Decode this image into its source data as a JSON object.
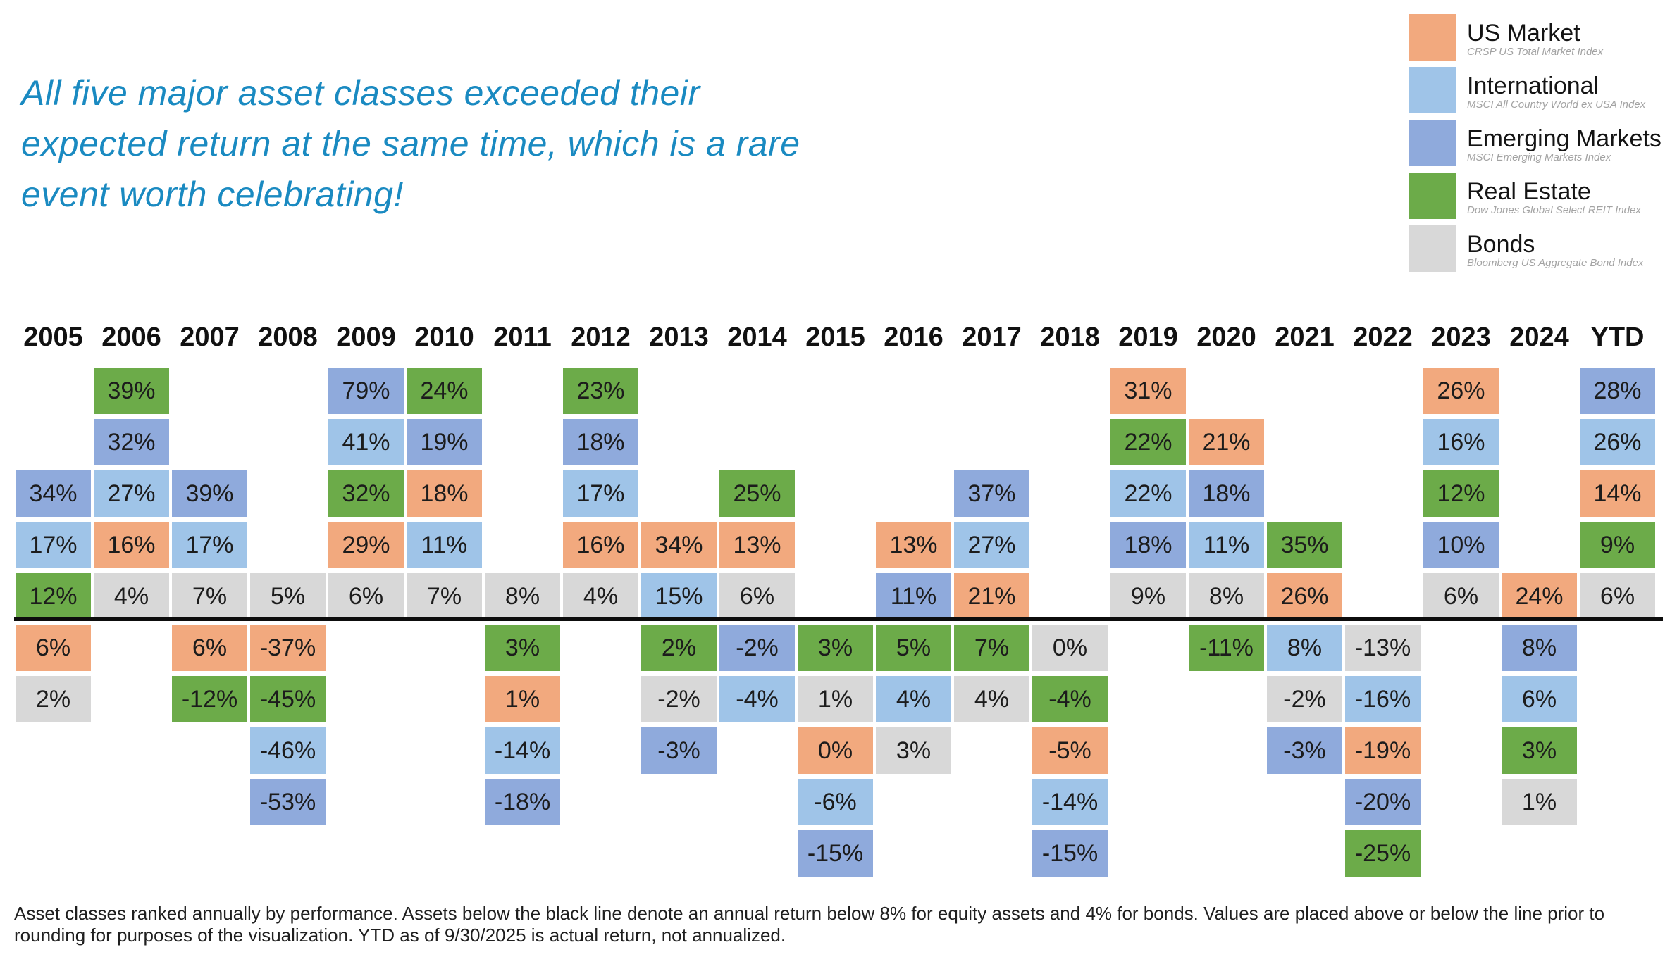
{
  "title": "All five major asset classes exceeded their expected return at the same time, which is a rare event worth celebrating!",
  "footnote": "Asset classes ranked annually by performance. Assets below the black line denote an annual return below 8% for equity assets and 4% for bonds. Values are placed above or below the line prior to rounding for purposes of the visualization. YTD as of 9/30/2025 is actual return, not annualized.",
  "colors": {
    "us-market": "#f2a97e",
    "international": "#9fc4e8",
    "emerging-markets": "#8faadc",
    "real-estate": "#6cab49",
    "bonds": "#d8d8d8",
    "title": "#1a8ac1",
    "divider": "#0d0d0d"
  },
  "legend": [
    {
      "id": "us-market",
      "label": "US Market",
      "index": "CRSP US Total Market Index"
    },
    {
      "id": "international",
      "label": "International",
      "index": "MSCI All Country World ex USA Index"
    },
    {
      "id": "emerging-markets",
      "label": "Emerging Markets",
      "index": "MSCI Emerging Markets Index"
    },
    {
      "id": "real-estate",
      "label": "Real Estate",
      "index": "Dow Jones Global Select REIT Index"
    },
    {
      "id": "bonds",
      "label": "Bonds",
      "index": "Bloomberg US Aggregate Bond Index"
    }
  ],
  "chart_data": {
    "type": "table",
    "description": "Asset classes ranked annually by performance; rows 1-5 sit above the black expected-return line, rows 6-10 below it",
    "rows_above_line": 5,
    "divider_rule": "below line = annual return below 8% for equity assets and 4% for bonds",
    "columns": [
      {
        "year": "2005",
        "cells": [
          {
            "row": 3,
            "asset": "emerging-markets",
            "value": "34%"
          },
          {
            "row": 4,
            "asset": "international",
            "value": "17%"
          },
          {
            "row": 5,
            "asset": "real-estate",
            "value": "12%"
          },
          {
            "row": 6,
            "asset": "us-market",
            "value": "6%"
          },
          {
            "row": 7,
            "asset": "bonds",
            "value": "2%"
          }
        ]
      },
      {
        "year": "2006",
        "cells": [
          {
            "row": 1,
            "asset": "real-estate",
            "value": "39%"
          },
          {
            "row": 2,
            "asset": "emerging-markets",
            "value": "32%"
          },
          {
            "row": 3,
            "asset": "international",
            "value": "27%"
          },
          {
            "row": 4,
            "asset": "us-market",
            "value": "16%"
          },
          {
            "row": 5,
            "asset": "bonds",
            "value": "4%"
          }
        ]
      },
      {
        "year": "2007",
        "cells": [
          {
            "row": 3,
            "asset": "emerging-markets",
            "value": "39%"
          },
          {
            "row": 4,
            "asset": "international",
            "value": "17%"
          },
          {
            "row": 5,
            "asset": "bonds",
            "value": "7%"
          },
          {
            "row": 6,
            "asset": "us-market",
            "value": "6%"
          },
          {
            "row": 7,
            "asset": "real-estate",
            "value": "-12%"
          }
        ]
      },
      {
        "year": "2008",
        "cells": [
          {
            "row": 5,
            "asset": "bonds",
            "value": "5%"
          },
          {
            "row": 6,
            "asset": "us-market",
            "value": "-37%"
          },
          {
            "row": 7,
            "asset": "real-estate",
            "value": "-45%"
          },
          {
            "row": 8,
            "asset": "international",
            "value": "-46%"
          },
          {
            "row": 9,
            "asset": "emerging-markets",
            "value": "-53%"
          }
        ]
      },
      {
        "year": "2009",
        "cells": [
          {
            "row": 1,
            "asset": "emerging-markets",
            "value": "79%"
          },
          {
            "row": 2,
            "asset": "international",
            "value": "41%"
          },
          {
            "row": 3,
            "asset": "real-estate",
            "value": "32%"
          },
          {
            "row": 4,
            "asset": "us-market",
            "value": "29%"
          },
          {
            "row": 5,
            "asset": "bonds",
            "value": "6%"
          }
        ]
      },
      {
        "year": "2010",
        "cells": [
          {
            "row": 1,
            "asset": "real-estate",
            "value": "24%"
          },
          {
            "row": 2,
            "asset": "emerging-markets",
            "value": "19%"
          },
          {
            "row": 3,
            "asset": "us-market",
            "value": "18%"
          },
          {
            "row": 4,
            "asset": "international",
            "value": "11%"
          },
          {
            "row": 5,
            "asset": "bonds",
            "value": "7%"
          }
        ]
      },
      {
        "year": "2011",
        "cells": [
          {
            "row": 5,
            "asset": "bonds",
            "value": "8%"
          },
          {
            "row": 6,
            "asset": "real-estate",
            "value": "3%"
          },
          {
            "row": 7,
            "asset": "us-market",
            "value": "1%"
          },
          {
            "row": 8,
            "asset": "international",
            "value": "-14%"
          },
          {
            "row": 9,
            "asset": "emerging-markets",
            "value": "-18%"
          }
        ]
      },
      {
        "year": "2012",
        "cells": [
          {
            "row": 1,
            "asset": "real-estate",
            "value": "23%"
          },
          {
            "row": 2,
            "asset": "emerging-markets",
            "value": "18%"
          },
          {
            "row": 3,
            "asset": "international",
            "value": "17%"
          },
          {
            "row": 4,
            "asset": "us-market",
            "value": "16%"
          },
          {
            "row": 5,
            "asset": "bonds",
            "value": "4%"
          }
        ]
      },
      {
        "year": "2013",
        "cells": [
          {
            "row": 4,
            "asset": "us-market",
            "value": "34%"
          },
          {
            "row": 5,
            "asset": "international",
            "value": "15%"
          },
          {
            "row": 6,
            "asset": "real-estate",
            "value": "2%"
          },
          {
            "row": 7,
            "asset": "bonds",
            "value": "-2%"
          },
          {
            "row": 8,
            "asset": "emerging-markets",
            "value": "-3%"
          }
        ]
      },
      {
        "year": "2014",
        "cells": [
          {
            "row": 3,
            "asset": "real-estate",
            "value": "25%"
          },
          {
            "row": 4,
            "asset": "us-market",
            "value": "13%"
          },
          {
            "row": 5,
            "asset": "bonds",
            "value": "6%"
          },
          {
            "row": 6,
            "asset": "emerging-markets",
            "value": "-2%"
          },
          {
            "row": 7,
            "asset": "international",
            "value": "-4%"
          }
        ]
      },
      {
        "year": "2015",
        "cells": [
          {
            "row": 6,
            "asset": "real-estate",
            "value": "3%"
          },
          {
            "row": 7,
            "asset": "bonds",
            "value": "1%"
          },
          {
            "row": 8,
            "asset": "us-market",
            "value": "0%"
          },
          {
            "row": 9,
            "asset": "international",
            "value": "-6%"
          },
          {
            "row": 10,
            "asset": "emerging-markets",
            "value": "-15%"
          }
        ]
      },
      {
        "year": "2016",
        "cells": [
          {
            "row": 4,
            "asset": "us-market",
            "value": "13%"
          },
          {
            "row": 5,
            "asset": "emerging-markets",
            "value": "11%"
          },
          {
            "row": 6,
            "asset": "real-estate",
            "value": "5%"
          },
          {
            "row": 7,
            "asset": "international",
            "value": "4%"
          },
          {
            "row": 8,
            "asset": "bonds",
            "value": "3%"
          }
        ]
      },
      {
        "year": "2017",
        "cells": [
          {
            "row": 3,
            "asset": "emerging-markets",
            "value": "37%"
          },
          {
            "row": 4,
            "asset": "international",
            "value": "27%"
          },
          {
            "row": 5,
            "asset": "us-market",
            "value": "21%"
          },
          {
            "row": 6,
            "asset": "real-estate",
            "value": "7%"
          },
          {
            "row": 7,
            "asset": "bonds",
            "value": "4%"
          }
        ]
      },
      {
        "year": "2018",
        "cells": [
          {
            "row": 6,
            "asset": "bonds",
            "value": "0%"
          },
          {
            "row": 7,
            "asset": "real-estate",
            "value": "-4%"
          },
          {
            "row": 8,
            "asset": "us-market",
            "value": "-5%"
          },
          {
            "row": 9,
            "asset": "international",
            "value": "-14%"
          },
          {
            "row": 10,
            "asset": "emerging-markets",
            "value": "-15%"
          }
        ]
      },
      {
        "year": "2019",
        "cells": [
          {
            "row": 1,
            "asset": "us-market",
            "value": "31%"
          },
          {
            "row": 2,
            "asset": "real-estate",
            "value": "22%"
          },
          {
            "row": 3,
            "asset": "international",
            "value": "22%"
          },
          {
            "row": 4,
            "asset": "emerging-markets",
            "value": "18%"
          },
          {
            "row": 5,
            "asset": "bonds",
            "value": "9%"
          }
        ]
      },
      {
        "year": "2020",
        "cells": [
          {
            "row": 2,
            "asset": "us-market",
            "value": "21%"
          },
          {
            "row": 3,
            "asset": "emerging-markets",
            "value": "18%"
          },
          {
            "row": 4,
            "asset": "international",
            "value": "11%"
          },
          {
            "row": 5,
            "asset": "bonds",
            "value": "8%"
          },
          {
            "row": 6,
            "asset": "real-estate",
            "value": "-11%"
          }
        ]
      },
      {
        "year": "2021",
        "cells": [
          {
            "row": 4,
            "asset": "real-estate",
            "value": "35%"
          },
          {
            "row": 5,
            "asset": "us-market",
            "value": "26%"
          },
          {
            "row": 6,
            "asset": "international",
            "value": "8%"
          },
          {
            "row": 7,
            "asset": "bonds",
            "value": "-2%"
          },
          {
            "row": 8,
            "asset": "emerging-markets",
            "value": "-3%"
          }
        ]
      },
      {
        "year": "2022",
        "cells": [
          {
            "row": 6,
            "asset": "bonds",
            "value": "-13%"
          },
          {
            "row": 7,
            "asset": "international",
            "value": "-16%"
          },
          {
            "row": 8,
            "asset": "us-market",
            "value": "-19%"
          },
          {
            "row": 9,
            "asset": "emerging-markets",
            "value": "-20%"
          },
          {
            "row": 10,
            "asset": "real-estate",
            "value": "-25%"
          }
        ]
      },
      {
        "year": "2023",
        "cells": [
          {
            "row": 1,
            "asset": "us-market",
            "value": "26%"
          },
          {
            "row": 2,
            "asset": "international",
            "value": "16%"
          },
          {
            "row": 3,
            "asset": "real-estate",
            "value": "12%"
          },
          {
            "row": 4,
            "asset": "emerging-markets",
            "value": "10%"
          },
          {
            "row": 5,
            "asset": "bonds",
            "value": "6%"
          }
        ]
      },
      {
        "year": "2024",
        "cells": [
          {
            "row": 5,
            "asset": "us-market",
            "value": "24%"
          },
          {
            "row": 6,
            "asset": "emerging-markets",
            "value": "8%"
          },
          {
            "row": 7,
            "asset": "international",
            "value": "6%"
          },
          {
            "row": 8,
            "asset": "real-estate",
            "value": "3%"
          },
          {
            "row": 9,
            "asset": "bonds",
            "value": "1%"
          }
        ]
      },
      {
        "year": "YTD",
        "cells": [
          {
            "row": 1,
            "asset": "emerging-markets",
            "value": "28%"
          },
          {
            "row": 2,
            "asset": "international",
            "value": "26%"
          },
          {
            "row": 3,
            "asset": "us-market",
            "value": "14%"
          },
          {
            "row": 4,
            "asset": "real-estate",
            "value": "9%"
          },
          {
            "row": 5,
            "asset": "bonds",
            "value": "6%"
          }
        ]
      }
    ]
  }
}
